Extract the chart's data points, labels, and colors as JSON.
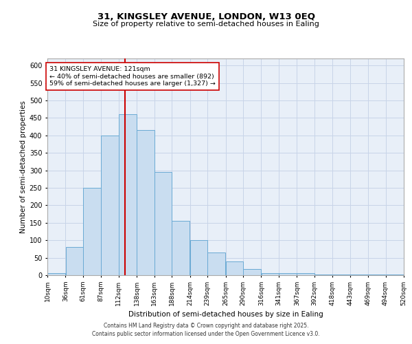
{
  "title_line1": "31, KINGSLEY AVENUE, LONDON, W13 0EQ",
  "title_line2": "Size of property relative to semi-detached houses in Ealing",
  "xlabel": "Distribution of semi-detached houses by size in Ealing",
  "ylabel": "Number of semi-detached properties",
  "footer_line1": "Contains HM Land Registry data © Crown copyright and database right 2025.",
  "footer_line2": "Contains public sector information licensed under the Open Government Licence v3.0.",
  "annotation_title": "31 KINGSLEY AVENUE: 121sqm",
  "annotation_line1": "← 40% of semi-detached houses are smaller (892)",
  "annotation_line2": "59% of semi-detached houses are larger (1,327) →",
  "property_size": 121,
  "bin_edges": [
    10,
    36,
    61,
    87,
    112,
    138,
    163,
    188,
    214,
    239,
    265,
    290,
    316,
    341,
    367,
    392,
    418,
    443,
    469,
    494,
    520
  ],
  "bin_labels": [
    "10sqm",
    "36sqm",
    "61sqm",
    "87sqm",
    "112sqm",
    "138sqm",
    "163sqm",
    "188sqm",
    "214sqm",
    "239sqm",
    "265sqm",
    "290sqm",
    "316sqm",
    "341sqm",
    "367sqm",
    "392sqm",
    "418sqm",
    "443sqm",
    "469sqm",
    "494sqm",
    "520sqm"
  ],
  "bar_values": [
    5,
    80,
    250,
    400,
    460,
    415,
    295,
    155,
    100,
    65,
    40,
    18,
    5,
    5,
    5,
    1,
    1,
    1,
    1,
    1
  ],
  "bar_color": "#c9ddf0",
  "bar_edge_color": "#6aaad4",
  "red_line_color": "#cc0000",
  "grid_color": "#c8d4e8",
  "background_color": "#e8eff8",
  "ylim": [
    0,
    620
  ],
  "yticks": [
    0,
    50,
    100,
    150,
    200,
    250,
    300,
    350,
    400,
    450,
    500,
    550,
    600
  ]
}
